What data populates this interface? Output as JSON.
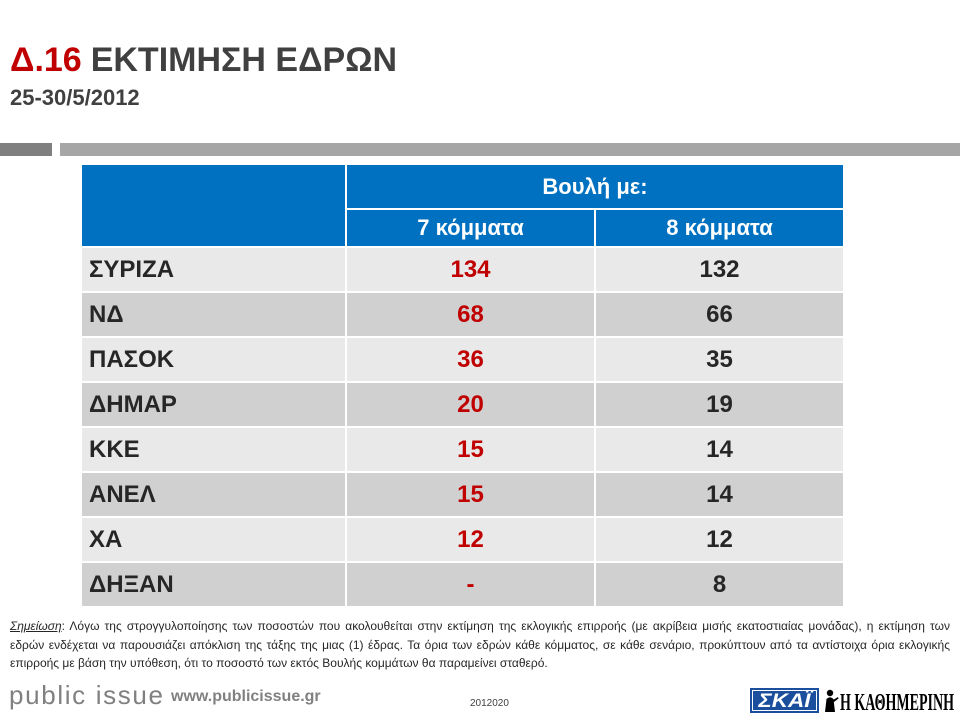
{
  "slide": {
    "number": "Δ.16"
  },
  "chart_data": {
    "type": "table",
    "title": "ΕΚΤΙΜΗΣΗ ΕΔΡΩΝ",
    "subtitle": "25-30/5/2012",
    "column_group": "Βουλή με:",
    "categories": [
      "ΣΥΡΙΖΑ",
      "ΝΔ",
      "ΠΑΣΟΚ",
      "ΔΗΜΑΡ",
      "ΚΚΕ",
      "ΑΝΕΛ",
      "ΧΑ",
      "ΔΗΞΑΝ"
    ],
    "series": [
      {
        "name": "7 κόμματα",
        "values": [
          134,
          68,
          36,
          20,
          15,
          15,
          12,
          null
        ]
      },
      {
        "name": "8 κόμματα",
        "values": [
          132,
          66,
          35,
          19,
          14,
          14,
          12,
          8
        ]
      }
    ],
    "missing_value_label": "-"
  },
  "note": {
    "label": "Σημείωση",
    "text": ": Λόγω της στρογγυλοποίησης των ποσοστών που ακολουθείται στην εκτίμηση της εκλογικής επιρροής (με ακρίβεια μισής εκατοστιαίας μονάδας), η εκτίμηση των εδρών ενδέχεται να παρουσιάζει απόκλιση της τάξης της μιας (1) έδρας. Τα όρια των εδρών κάθε κόμματος, σε κάθε σενάριο, προκύπτουν από τα αντίστοιχα όρια εκλογικής επιρροής με βάση την υπόθεση, ότι το ποσοστό των εκτός Βουλής κομμάτων θα παραμείνει σταθερό."
  },
  "footer": {
    "brand": "public issue",
    "website": "www.publicissue.gr",
    "doc_code": "2012020"
  },
  "logos": {
    "skai": "ΣΚΑΪ",
    "kathimerini": "Η ΚΑΘΗΜΕΡΙΝΗ"
  },
  "colors": {
    "brand_red": "#C00000",
    "header_blue": "#0070C0",
    "row_light": "#E9E9E9",
    "row_dark": "#D0D0D0",
    "text_dark": "#262626",
    "title_gray": "#404040",
    "rule_dark": "#7F7F7F",
    "rule_light": "#A6A6A6",
    "footer_gray": "#808080",
    "skai_blue": "#1B4F9E"
  }
}
